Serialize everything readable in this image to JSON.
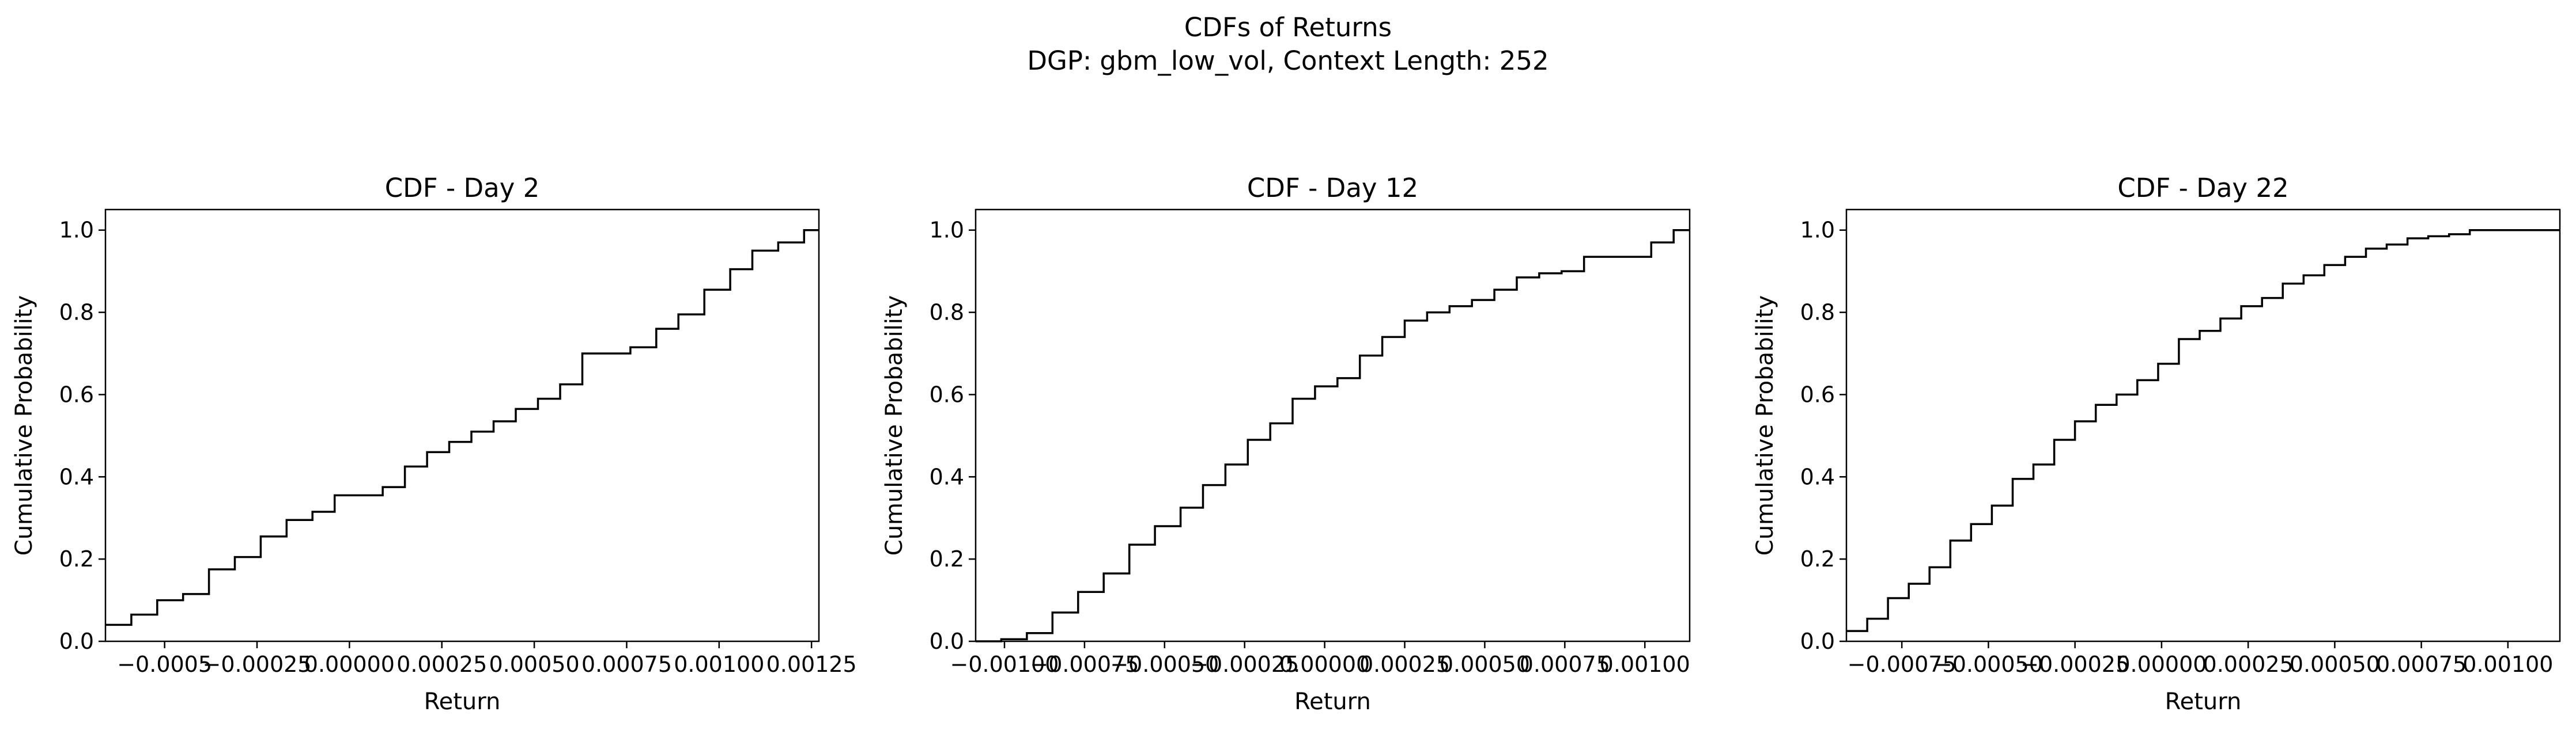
{
  "figure": {
    "title_line1": "CDFs of Returns",
    "title_line2": "DGP: gbm_low_vol, Context Length: 252"
  },
  "chart_data": [
    {
      "type": "line",
      "step": true,
      "title": "CDF - Day 2",
      "xlabel": "Return",
      "ylabel": "Cumulative Probability",
      "xlim": [
        -0.00066,
        0.00127
      ],
      "ylim": [
        0,
        1.05
      ],
      "xticks": [
        -0.0005,
        -0.00025,
        0.0,
        0.00025,
        0.0005,
        0.00075,
        0.001,
        0.00125
      ],
      "xtick_labels": [
        "−0.0005",
        "−0.00025",
        "0.00000",
        "0.00025",
        "0.00050",
        "0.00075",
        "0.00100",
        "0.00125"
      ],
      "yticks": [
        0.0,
        0.2,
        0.4,
        0.6,
        0.8,
        1.0
      ],
      "ytick_labels": [
        "0.0",
        "0.2",
        "0.4",
        "0.6",
        "0.8",
        "1.0"
      ],
      "grid": false,
      "line_color": "#000000",
      "series": [
        {
          "x": [
            -0.00066,
            -0.00059,
            -0.00052,
            -0.00045,
            -0.00038,
            -0.00031,
            -0.00024,
            -0.00017,
            -0.0001,
            -4e-05,
            0.0,
            9e-05,
            0.00015,
            0.00021,
            0.00027,
            0.00033,
            0.00039,
            0.00045,
            0.00051,
            0.00057,
            0.00063,
            0.0007,
            0.00076,
            0.00083,
            0.00089,
            0.00096,
            0.00103,
            0.00109,
            0.00116,
            0.00123,
            0.00127
          ],
          "y": [
            0.04,
            0.065,
            0.1,
            0.115,
            0.175,
            0.205,
            0.255,
            0.295,
            0.315,
            0.355,
            0.355,
            0.375,
            0.425,
            0.46,
            0.485,
            0.51,
            0.535,
            0.565,
            0.59,
            0.625,
            0.7,
            0.7,
            0.715,
            0.76,
            0.795,
            0.855,
            0.905,
            0.95,
            0.97,
            1.0,
            1.0
          ]
        }
      ]
    },
    {
      "type": "line",
      "step": true,
      "title": "CDF - Day 12",
      "xlabel": "Return",
      "ylabel": "Cumulative Probability",
      "xlim": [
        -0.00109,
        0.00114
      ],
      "ylim": [
        0,
        1.05
      ],
      "xticks": [
        -0.001,
        -0.00075,
        -0.0005,
        -0.00025,
        0.0,
        0.00025,
        0.0005,
        0.00075,
        0.001
      ],
      "xtick_labels": [
        "−0.00100",
        "−0.00075",
        "−0.00050",
        "−0.00025",
        "0.00000",
        "0.00025",
        "0.00050",
        "0.00075",
        "0.00100"
      ],
      "yticks": [
        0.0,
        0.2,
        0.4,
        0.6,
        0.8,
        1.0
      ],
      "ytick_labels": [
        "0.0",
        "0.2",
        "0.4",
        "0.6",
        "0.8",
        "1.0"
      ],
      "grid": false,
      "line_color": "#000000",
      "series": [
        {
          "x": [
            -0.00109,
            -0.00101,
            -0.00093,
            -0.00085,
            -0.00077,
            -0.00069,
            -0.00061,
            -0.00053,
            -0.00045,
            -0.00038,
            -0.00031,
            -0.00024,
            -0.00017,
            -0.0001,
            -3e-05,
            4e-05,
            0.00011,
            0.00018,
            0.00025,
            0.00032,
            0.00039,
            0.00046,
            0.00053,
            0.0006,
            0.00067,
            0.00074,
            0.00081,
            0.00088,
            0.00095,
            0.00102,
            0.00109,
            0.00114
          ],
          "y": [
            0.0,
            0.005,
            0.02,
            0.07,
            0.12,
            0.165,
            0.235,
            0.28,
            0.325,
            0.38,
            0.43,
            0.49,
            0.53,
            0.59,
            0.62,
            0.64,
            0.695,
            0.74,
            0.78,
            0.8,
            0.815,
            0.83,
            0.855,
            0.885,
            0.895,
            0.9,
            0.935,
            0.935,
            0.935,
            0.97,
            1.0,
            1.0
          ]
        }
      ]
    },
    {
      "type": "line",
      "step": true,
      "title": "CDF - Day 22",
      "xlabel": "Return",
      "ylabel": "Cumulative Probability",
      "xlim": [
        -0.00091,
        0.00115
      ],
      "ylim": [
        0,
        1.05
      ],
      "xticks": [
        -0.00075,
        -0.0005,
        -0.00025,
        0.0,
        0.00025,
        0.0005,
        0.00075,
        0.001
      ],
      "xtick_labels": [
        "−0.00075",
        "−0.00050",
        "−0.00025",
        "0.00000",
        "0.00025",
        "0.00050",
        "0.00075",
        "0.00100"
      ],
      "yticks": [
        0.0,
        0.2,
        0.4,
        0.6,
        0.8,
        1.0
      ],
      "ytick_labels": [
        "0.0",
        "0.2",
        "0.4",
        "0.6",
        "0.8",
        "1.0"
      ],
      "grid": false,
      "line_color": "#000000",
      "series": [
        {
          "x": [
            -0.00091,
            -0.00085,
            -0.00079,
            -0.00073,
            -0.00067,
            -0.00061,
            -0.00055,
            -0.00049,
            -0.00043,
            -0.00037,
            -0.00031,
            -0.00025,
            -0.00019,
            -0.00013,
            -7e-05,
            -1e-05,
            5e-05,
            0.00011,
            0.00017,
            0.00023,
            0.00029,
            0.00035,
            0.00041,
            0.00047,
            0.00053,
            0.00059,
            0.00065,
            0.00071,
            0.00077,
            0.00083,
            0.00089,
            0.00095,
            0.00101,
            0.00107,
            0.00113,
            0.00115
          ],
          "y": [
            0.025,
            0.055,
            0.105,
            0.14,
            0.18,
            0.245,
            0.285,
            0.33,
            0.395,
            0.43,
            0.49,
            0.535,
            0.575,
            0.6,
            0.635,
            0.675,
            0.735,
            0.755,
            0.785,
            0.815,
            0.835,
            0.87,
            0.89,
            0.915,
            0.935,
            0.955,
            0.965,
            0.98,
            0.985,
            0.99,
            1.0,
            1.0,
            1.0,
            1.0,
            1.0,
            1.0
          ]
        }
      ]
    }
  ]
}
